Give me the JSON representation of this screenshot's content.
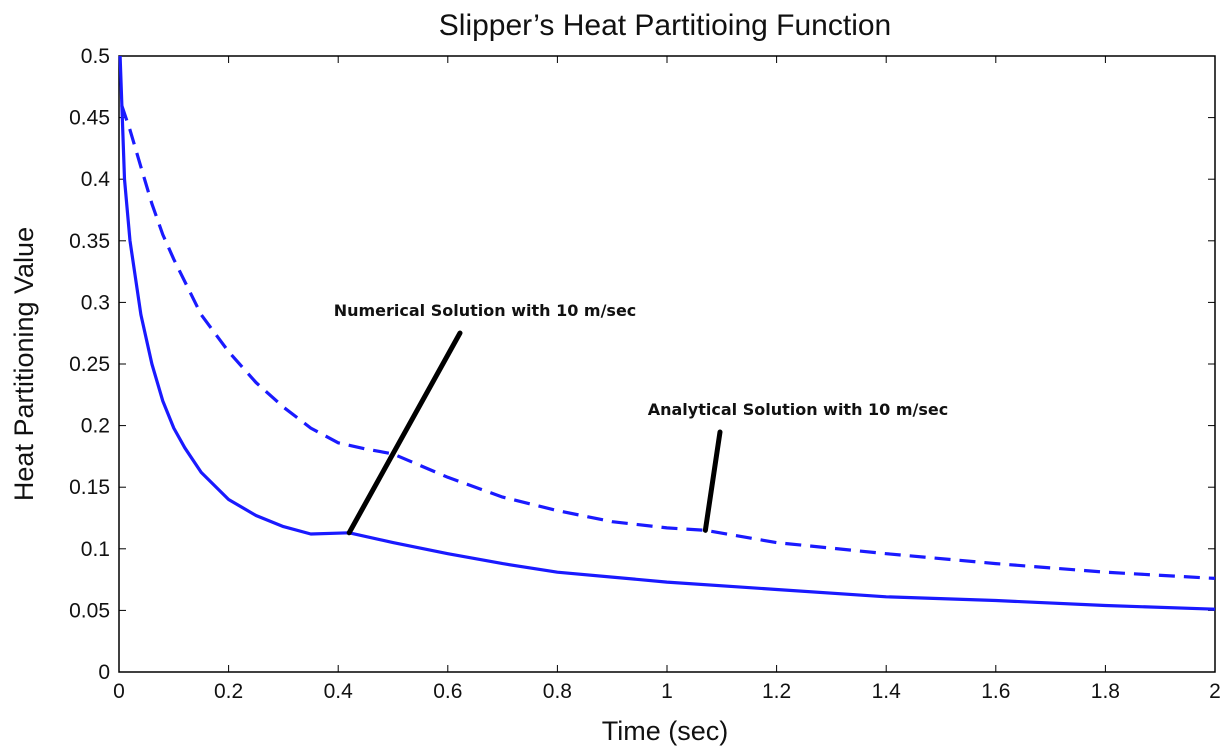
{
  "chart_data": {
    "type": "line",
    "title": "Slipper’s Heat Partitioing Function",
    "xlabel": "Time (sec)",
    "ylabel": "Heat Partitioning Value",
    "xlim": [
      0,
      2
    ],
    "ylim": [
      0,
      0.5
    ],
    "xticks": [
      "0",
      "0.2",
      "0.4",
      "0.6",
      "0.8",
      "1",
      "1.2",
      "1.4",
      "1.6",
      "1.8",
      "2"
    ],
    "yticks": [
      "0",
      "0.05",
      "0.1",
      "0.15",
      "0.2",
      "0.25",
      "0.3",
      "0.35",
      "0.4",
      "0.45",
      "0.5"
    ],
    "grid": false,
    "line_color": "#1a1aff",
    "series": [
      {
        "style": "solid",
        "x": [
          0.002,
          0.01,
          0.02,
          0.04,
          0.06,
          0.08,
          0.1,
          0.12,
          0.15,
          0.2,
          0.25,
          0.3,
          0.35,
          0.42,
          0.5,
          0.6,
          0.7,
          0.8,
          0.9,
          1.0,
          1.2,
          1.4,
          1.6,
          1.8,
          2.0
        ],
        "y": [
          0.5,
          0.4,
          0.35,
          0.29,
          0.25,
          0.22,
          0.198,
          0.182,
          0.162,
          0.14,
          0.127,
          0.118,
          0.112,
          0.113,
          0.105,
          0.096,
          0.088,
          0.081,
          0.077,
          0.073,
          0.067,
          0.061,
          0.058,
          0.054,
          0.051
        ]
      },
      {
        "style": "dashed",
        "x": [
          0.005,
          0.02,
          0.04,
          0.06,
          0.08,
          0.1,
          0.15,
          0.2,
          0.25,
          0.3,
          0.35,
          0.4,
          0.45,
          0.5,
          0.6,
          0.7,
          0.8,
          0.9,
          1.0,
          1.07,
          1.2,
          1.4,
          1.6,
          1.8,
          2.0
        ],
        "y": [
          0.46,
          0.44,
          0.41,
          0.38,
          0.355,
          0.335,
          0.29,
          0.26,
          0.235,
          0.215,
          0.198,
          0.186,
          0.181,
          0.177,
          0.158,
          0.142,
          0.131,
          0.122,
          0.117,
          0.115,
          0.105,
          0.096,
          0.088,
          0.081,
          0.076
        ]
      }
    ],
    "annotations": [
      {
        "text": "Numerical Solution with 10 m/sec",
        "target_x": 0.42,
        "target_y": 0.113
      },
      {
        "text": "Analytical Solution with 10 m/sec",
        "target_x": 1.07,
        "target_y": 0.115
      }
    ]
  }
}
